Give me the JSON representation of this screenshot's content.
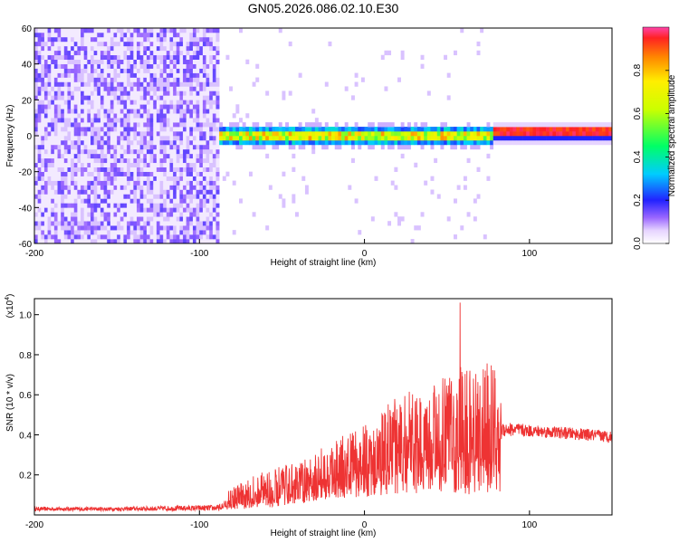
{
  "title": "GN05.2026.086.02.10.E30",
  "chart_data": [
    {
      "type": "heatmap",
      "name": "spectrogram",
      "xlabel": "Height of straight line (km)",
      "ylabel": "Frequency (Hz)",
      "xlim": [
        -200,
        150
      ],
      "ylim": [
        -60,
        60
      ],
      "xticks": [
        -200,
        -100,
        0,
        100
      ],
      "yticks": [
        -60,
        -40,
        -20,
        0,
        20,
        40,
        60
      ],
      "colorbar": {
        "label": "Normalized spectral amplitude",
        "range": [
          0.0,
          1.0
        ],
        "ticks": [
          0.0,
          0.2,
          0.4,
          0.6,
          0.8
        ]
      },
      "regions": [
        {
          "desc": "broadband noise",
          "x": [
            -200,
            -88
          ],
          "f": [
            -60,
            60
          ],
          "amplitude": 0.12
        },
        {
          "desc": "signal band",
          "x": [
            -88,
            78
          ],
          "f": [
            -5,
            5
          ],
          "amplitude": 0.5
        },
        {
          "desc": "strong narrow signal",
          "x": [
            78,
            150
          ],
          "f": [
            0,
            4
          ],
          "amplitude": 0.95
        }
      ]
    },
    {
      "type": "line",
      "name": "snr",
      "xlabel": "Height of straight line (km)",
      "ylabel": "SNR (10 * v/v)",
      "yscale_label": "(x10",
      "yscale_exp": "4",
      "xlim": [
        -200,
        150
      ],
      "ylim": [
        0,
        1.08
      ],
      "xticks": [
        -200,
        -100,
        0,
        100
      ],
      "yticks": [
        0.2,
        0.4,
        0.6,
        0.8,
        1.0
      ],
      "color": "#ee3333",
      "envelope": {
        "x": [
          -200,
          -150,
          -88,
          -80,
          -60,
          -40,
          -20,
          0,
          20,
          40,
          60,
          82,
          83,
          100,
          120,
          150
        ],
        "base": [
          0.03,
          0.03,
          0.035,
          0.07,
          0.1,
          0.13,
          0.18,
          0.22,
          0.28,
          0.3,
          0.33,
          0.35,
          0.43,
          0.42,
          0.41,
          0.39
        ],
        "spread": [
          0.01,
          0.01,
          0.015,
          0.08,
          0.12,
          0.14,
          0.18,
          0.24,
          0.32,
          0.36,
          0.42,
          0.42,
          0.04,
          0.03,
          0.03,
          0.03
        ]
      },
      "peak": {
        "x": 58,
        "y": 1.06
      }
    }
  ]
}
